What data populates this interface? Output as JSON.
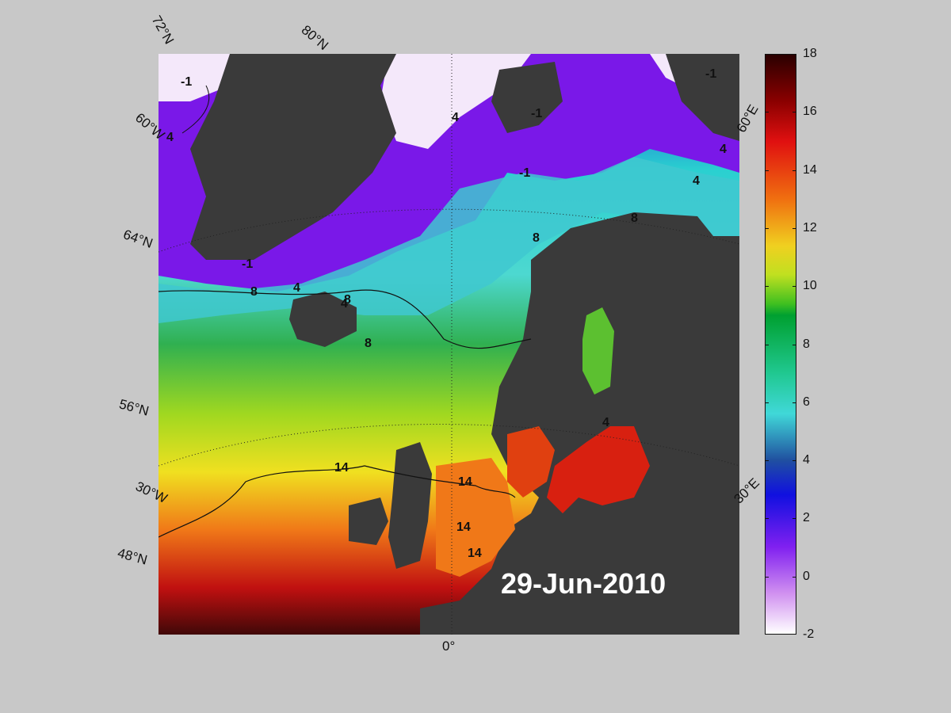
{
  "date": "29-Jun-2010",
  "graticule_labels": {
    "lat_72": "72°N",
    "lat_80": "80°N",
    "lat_60_w": "60°W",
    "lat_64": "64°N",
    "lat_56": "56°N",
    "lon_30w": "30°W",
    "lat_48": "48°N",
    "lon_0": "0°",
    "lon_30e": "30°E",
    "lon_60e": "60°E"
  },
  "colorbar": {
    "min": -2,
    "max": 18,
    "ticks": [
      "18",
      "16",
      "14",
      "12",
      "10",
      "8",
      "6",
      "4",
      "2",
      "0",
      "-2"
    ]
  },
  "contour_labels": {
    "c1": "-1",
    "c2": "4",
    "c3": "-1",
    "c4": "4",
    "c5": "-1",
    "c6": "-1",
    "c7": "4",
    "c8": "8",
    "c9": "4",
    "c10": "8",
    "c11": "8",
    "c12": "8",
    "c13": "8",
    "c14": "14",
    "c15": "14",
    "c16": "14",
    "c17": "14",
    "c18": "4",
    "c19": "-1",
    "c20": "4",
    "c21": "4"
  },
  "colors": {
    "land": "#3a3a3a",
    "ice": "#f4e8fa",
    "background": "#c8c8c8"
  }
}
